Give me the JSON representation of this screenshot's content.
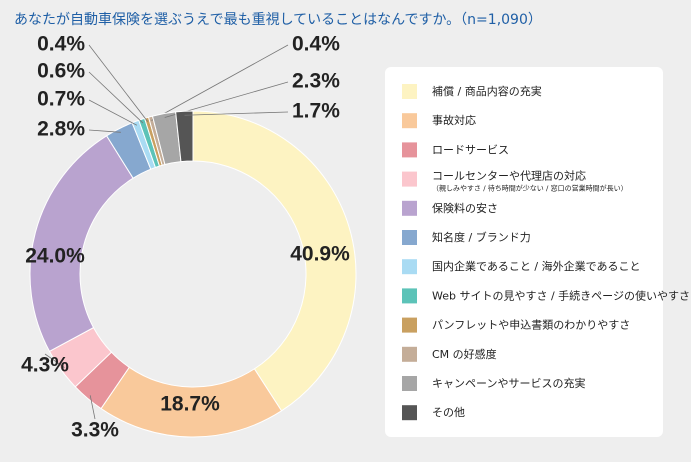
{
  "chart_data": {
    "type": "donut",
    "title": "あなたが自動車保険を選ぶうえで最も重視していることはなんですか。（n=1,090）",
    "categories": [
      "補償 / 商品内容の充実",
      "事故対応",
      "ロードサービス",
      "コールセンターや代理店の対応",
      "保険料の安さ",
      "知名度 / ブランド力",
      "国内企業であること / 海外企業であること",
      "Web サイトの見やすさ / 手続きページの使いやすさ",
      "パンフレットや申込書類のわかりやすさ",
      "CM の好感度",
      "キャンペーンやサービスの充実",
      "その他"
    ],
    "category_notes": [
      null,
      null,
      null,
      "（親しみやすさ / 待ち時間が少ない / 窓口の営業時間が長い）",
      null,
      null,
      null,
      null,
      null,
      null,
      null,
      null
    ],
    "values": [
      40.9,
      18.7,
      3.3,
      4.3,
      24.0,
      2.8,
      0.7,
      0.6,
      0.4,
      0.4,
      2.3,
      1.7
    ],
    "value_labels": [
      "40.9%",
      "18.7%",
      "3.3%",
      "4.3%",
      "24.0%",
      "2.8%",
      "0.7%",
      "0.6%",
      "0.4%",
      "0.4%",
      "2.3%",
      "1.7%"
    ],
    "colors": [
      "#fdf3c2",
      "#f9c99b",
      "#e6939b",
      "#fbc6cd",
      "#b9a3cf",
      "#86a8cf",
      "#a9dbf3",
      "#5cc3b8",
      "#c9a060",
      "#c4ad98",
      "#a6a6a6",
      "#555555"
    ]
  }
}
